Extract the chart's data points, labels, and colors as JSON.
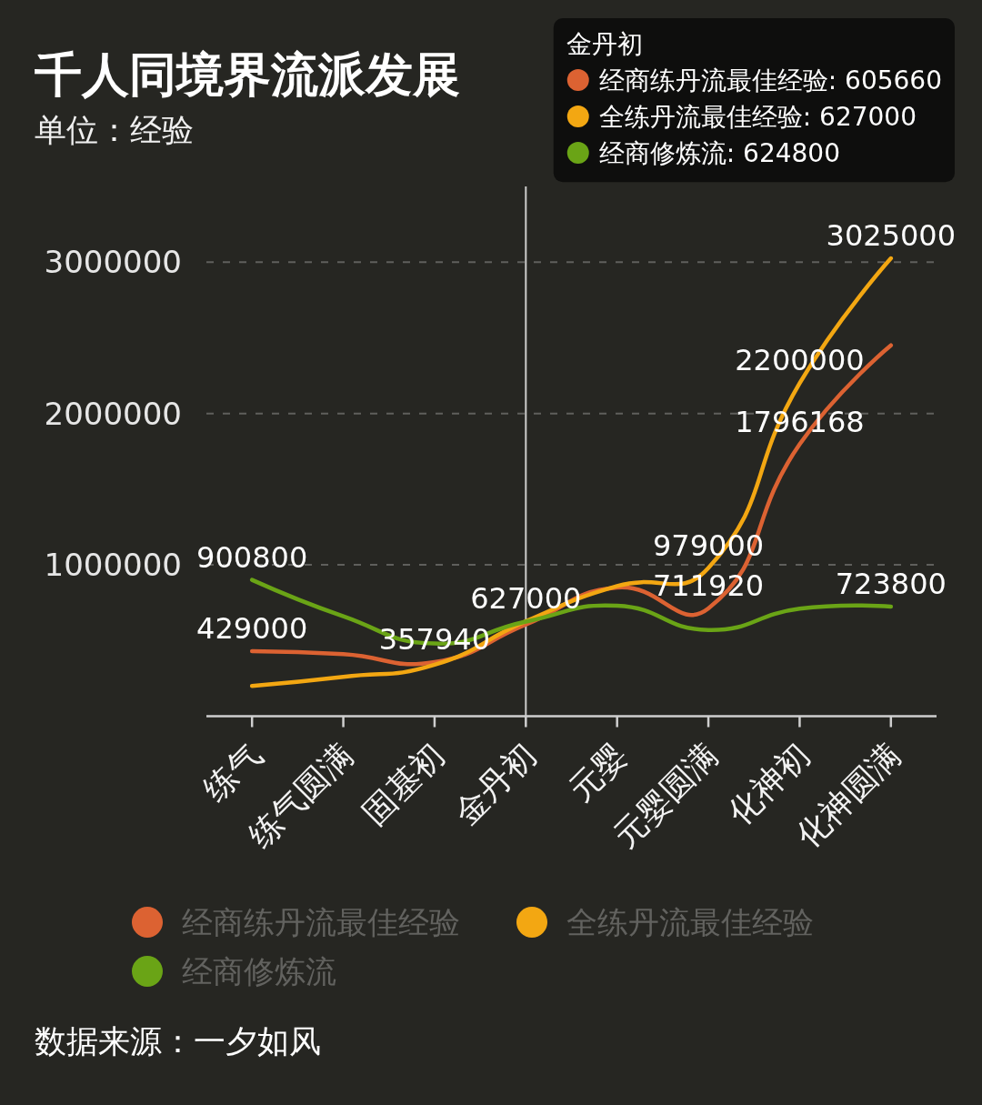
{
  "chart_data": {
    "type": "line",
    "title": "千人同境界流派发展",
    "subtitle": "单位：经验",
    "categories": [
      "练气",
      "练气圆满",
      "固基初",
      "金丹初",
      "元婴",
      "元婴圆满",
      "化神初",
      "化神圆满"
    ],
    "series": [
      {
        "name": "经商练丹流最佳经验",
        "color": "#dc6232",
        "values": [
          429000,
          410000,
          357940,
          605660,
          850000,
          711920,
          1796168,
          2450000
        ],
        "value_labels": [
          "429000",
          null,
          "357940",
          null,
          null,
          "711920",
          "1796168",
          null
        ]
      },
      {
        "name": "全练丹流最佳经验",
        "color": "#f3a712",
        "values": [
          200000,
          260000,
          340000,
          627000,
          860000,
          979000,
          2200000,
          3025000
        ],
        "value_labels": [
          null,
          null,
          null,
          "627000",
          null,
          "979000",
          "2200000",
          "3025000"
        ]
      },
      {
        "name": "经商修炼流",
        "color": "#6aa416",
        "values": [
          900800,
          660000,
          480000,
          624800,
          730000,
          570000,
          710000,
          723800
        ],
        "value_labels": [
          "900800",
          null,
          null,
          null,
          null,
          null,
          null,
          "723800"
        ]
      }
    ],
    "ylim": [
      0,
      3500000
    ],
    "yticks": [
      1000000,
      2000000,
      3000000
    ],
    "grid": "y",
    "legend": "bottom",
    "ref_lines": [
      {
        "axis": "x",
        "value": "金丹初",
        "color": "#cccccc"
      }
    ],
    "annotations": [
      "金丹初",
      "经商练丹流最佳经验: 605660",
      "全练丹流最佳经验: 627000",
      "经商修炼流: 624800",
      "数据来源：一夕如风"
    ]
  }
}
